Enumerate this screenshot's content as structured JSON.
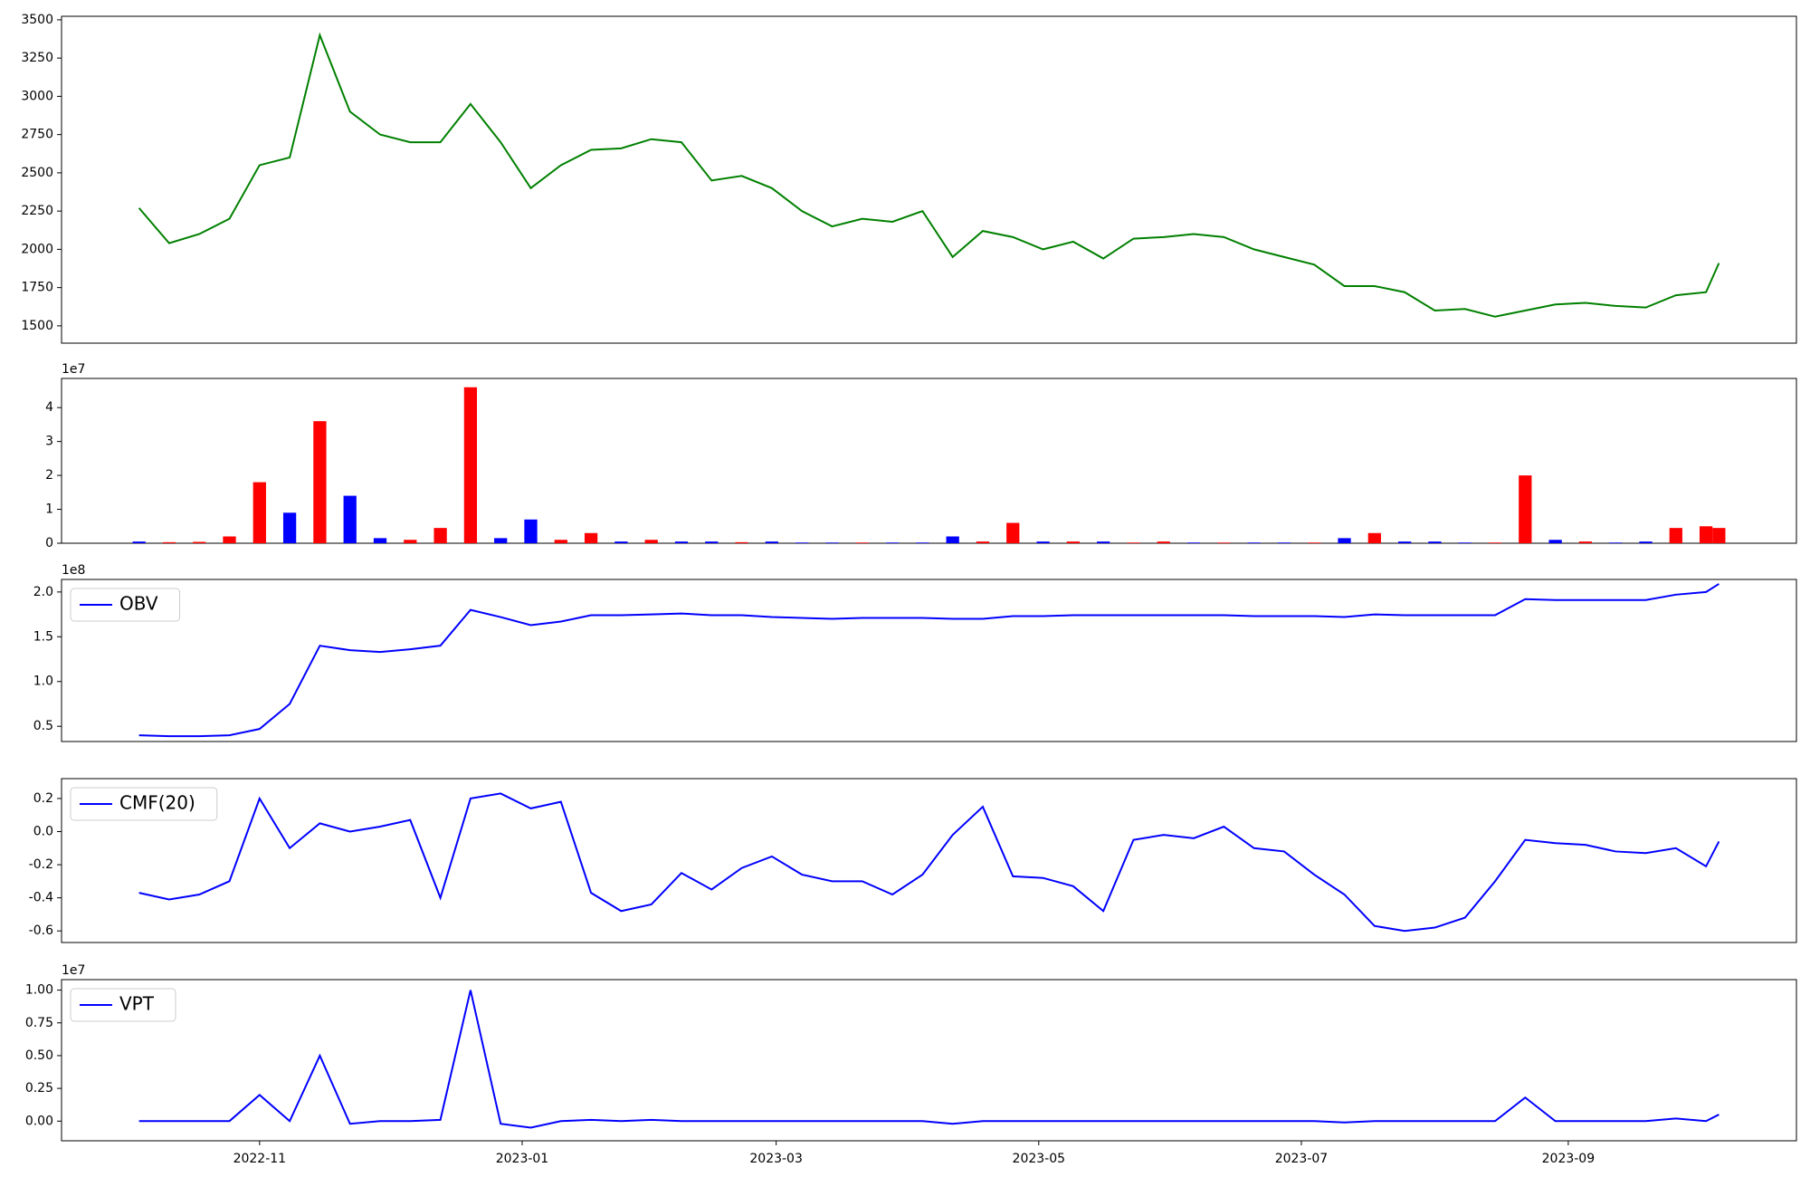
{
  "chart_data": [
    {
      "type": "line",
      "color": "green",
      "x": [
        19269,
        19276,
        19283,
        19290,
        19297,
        19304,
        19311,
        19318,
        19325,
        19332,
        19339,
        19346,
        19353,
        19360,
        19367,
        19374,
        19381,
        19388,
        19395,
        19402,
        19409,
        19416,
        19423,
        19430,
        19437,
        19444,
        19451,
        19458,
        19465,
        19472,
        19479,
        19486,
        19493,
        19500,
        19507,
        19514,
        19521,
        19528,
        19535,
        19542,
        19549,
        19556,
        19563,
        19570,
        19577,
        19584,
        19591,
        19598,
        19605,
        19612,
        19619,
        19626,
        19633,
        19636
      ],
      "values": [
        2270,
        2040,
        2100,
        2200,
        2550,
        2600,
        3400,
        2900,
        2750,
        2700,
        2700,
        2950,
        2700,
        2400,
        2550,
        2650,
        2660,
        2720,
        2700,
        2450,
        2480,
        2400,
        2250,
        2150,
        2200,
        2180,
        2250,
        1950,
        2120,
        2080,
        2000,
        2050,
        1940,
        2070,
        2080,
        2100,
        2080,
        2000,
        1950,
        1900,
        1760,
        1760,
        1720,
        1600,
        1610,
        1560,
        1600,
        1640,
        1650,
        1630,
        1620,
        1700,
        1720,
        1910
      ],
      "xlim": [
        19251,
        19654
      ],
      "ylim": [
        1387,
        3523
      ],
      "yticks": [
        1500,
        1750,
        2000,
        2250,
        2500,
        2750,
        3000,
        3250,
        3500
      ]
    },
    {
      "type": "bar",
      "offset_label": "1e7",
      "x": [
        19269,
        19276,
        19283,
        19290,
        19297,
        19304,
        19311,
        19318,
        19325,
        19332,
        19339,
        19346,
        19353,
        19360,
        19367,
        19374,
        19381,
        19388,
        19395,
        19402,
        19409,
        19416,
        19423,
        19430,
        19437,
        19444,
        19451,
        19458,
        19465,
        19472,
        19479,
        19486,
        19493,
        19500,
        19507,
        19514,
        19521,
        19528,
        19535,
        19542,
        19549,
        19556,
        19563,
        19570,
        19577,
        19584,
        19591,
        19598,
        19605,
        19612,
        19619,
        19626,
        19633,
        19636
      ],
      "values": [
        0.05,
        0.03,
        0.04,
        0.2,
        1.8,
        0.9,
        3.6,
        1.4,
        0.15,
        0.1,
        0.45,
        4.6,
        0.15,
        0.7,
        0.1,
        0.3,
        0.05,
        0.1,
        0.05,
        0.05,
        0.03,
        0.05,
        0.02,
        0.02,
        0.02,
        0.02,
        0.02,
        0.2,
        0.05,
        0.6,
        0.05,
        0.05,
        0.05,
        0.02,
        0.05,
        0.02,
        0.02,
        0.02,
        0.02,
        0.02,
        0.15,
        0.3,
        0.05,
        0.05,
        0.02,
        0.02,
        2.0,
        0.1,
        0.05,
        0.02,
        0.05,
        0.45,
        0.5,
        0.45
      ],
      "colors": [
        "blue",
        "red",
        "red",
        "red",
        "red",
        "blue",
        "red",
        "blue",
        "blue",
        "red",
        "red",
        "red",
        "blue",
        "blue",
        "red",
        "red",
        "blue",
        "red",
        "blue",
        "blue",
        "red",
        "blue",
        "blue",
        "blue",
        "red",
        "blue",
        "blue",
        "blue",
        "red",
        "red",
        "blue",
        "red",
        "blue",
        "red",
        "red",
        "blue",
        "red",
        "blue",
        "blue",
        "red",
        "blue",
        "red",
        "blue",
        "blue",
        "blue",
        "red",
        "red",
        "blue",
        "red",
        "blue",
        "blue",
        "red",
        "red",
        "red"
      ],
      "xlim": [
        19251,
        19654
      ],
      "ylim": [
        0,
        4.86
      ],
      "yticks": [
        0,
        1,
        2,
        3,
        4
      ]
    },
    {
      "type": "line",
      "offset_label": "1e8",
      "legend": "upper left",
      "x": [
        19269,
        19276,
        19283,
        19290,
        19297,
        19304,
        19311,
        19318,
        19325,
        19332,
        19339,
        19346,
        19353,
        19360,
        19367,
        19374,
        19381,
        19388,
        19395,
        19402,
        19409,
        19416,
        19423,
        19430,
        19437,
        19444,
        19451,
        19458,
        19465,
        19472,
        19479,
        19486,
        19493,
        19500,
        19507,
        19514,
        19521,
        19528,
        19535,
        19542,
        19549,
        19556,
        19563,
        19570,
        19577,
        19584,
        19591,
        19598,
        19605,
        19612,
        19619,
        19626,
        19633,
        19636
      ],
      "series": [
        {
          "name": "OBV",
          "color": "blue",
          "values": [
            0.4,
            0.39,
            0.39,
            0.4,
            0.47,
            0.75,
            1.4,
            1.35,
            1.33,
            1.36,
            1.4,
            1.8,
            1.72,
            1.63,
            1.67,
            1.74,
            1.74,
            1.75,
            1.76,
            1.74,
            1.74,
            1.72,
            1.71,
            1.7,
            1.71,
            1.71,
            1.71,
            1.7,
            1.7,
            1.73,
            1.73,
            1.74,
            1.74,
            1.74,
            1.74,
            1.74,
            1.74,
            1.73,
            1.73,
            1.73,
            1.72,
            1.75,
            1.74,
            1.74,
            1.74,
            1.74,
            1.92,
            1.91,
            1.91,
            1.91,
            1.91,
            1.97,
            2.0,
            2.09
          ]
        }
      ],
      "xlim": [
        19251,
        19654
      ],
      "ylim": [
        0.33,
        2.14
      ],
      "yticks": [
        0.5,
        {
          "value": 1,
          "label": "1.0"
        },
        1.5,
        {
          "value": 2,
          "label": "2.0"
        }
      ]
    },
    {
      "type": "line",
      "legend": "upper left",
      "x": [
        19269,
        19276,
        19283,
        19290,
        19297,
        19304,
        19311,
        19318,
        19325,
        19332,
        19339,
        19346,
        19353,
        19360,
        19367,
        19374,
        19381,
        19388,
        19395,
        19402,
        19409,
        19416,
        19423,
        19430,
        19437,
        19444,
        19451,
        19458,
        19465,
        19472,
        19479,
        19486,
        19493,
        19500,
        19507,
        19514,
        19521,
        19528,
        19535,
        19542,
        19549,
        19556,
        19563,
        19570,
        19577,
        19584,
        19591,
        19598,
        19605,
        19612,
        19619,
        19626,
        19633,
        19636
      ],
      "series": [
        {
          "name": "CMF(20)",
          "color": "blue",
          "values": [
            -0.37,
            -0.41,
            -0.38,
            -0.3,
            0.2,
            -0.1,
            0.05,
            0.0,
            0.03,
            0.07,
            -0.4,
            0.2,
            0.23,
            0.14,
            0.18,
            -0.37,
            -0.48,
            -0.44,
            -0.25,
            -0.35,
            -0.22,
            -0.15,
            -0.26,
            -0.3,
            -0.3,
            -0.38,
            -0.26,
            -0.02,
            0.15,
            -0.27,
            -0.28,
            -0.33,
            -0.48,
            -0.05,
            -0.02,
            -0.04,
            0.03,
            -0.1,
            -0.12,
            -0.26,
            -0.38,
            -0.57,
            -0.6,
            -0.58,
            -0.52,
            -0.3,
            -0.05,
            -0.07,
            -0.08,
            -0.12,
            -0.13,
            -0.1,
            -0.21,
            -0.06
          ]
        }
      ],
      "xlim": [
        19251,
        19654
      ],
      "ylim": [
        -0.67,
        0.32
      ],
      "yticks": [
        -0.6,
        -0.4,
        -0.2,
        {
          "value": 0,
          "label": "0.0"
        },
        0.2
      ]
    },
    {
      "type": "line",
      "offset_label": "1e7",
      "legend": "upper left",
      "x": [
        19269,
        19276,
        19283,
        19290,
        19297,
        19304,
        19311,
        19318,
        19325,
        19332,
        19339,
        19346,
        19353,
        19360,
        19367,
        19374,
        19381,
        19388,
        19395,
        19402,
        19409,
        19416,
        19423,
        19430,
        19437,
        19444,
        19451,
        19458,
        19465,
        19472,
        19479,
        19486,
        19493,
        19500,
        19507,
        19514,
        19521,
        19528,
        19535,
        19542,
        19549,
        19556,
        19563,
        19570,
        19577,
        19584,
        19591,
        19598,
        19605,
        19612,
        19619,
        19626,
        19633,
        19636
      ],
      "series": [
        {
          "name": "VPT",
          "color": "blue",
          "values": [
            0,
            0,
            0,
            0,
            0.2,
            0,
            0.5,
            -0.02,
            0,
            0,
            0.01,
            1.0,
            -0.02,
            -0.05,
            0,
            0.01,
            0,
            0.01,
            0,
            0,
            0,
            0,
            0,
            0,
            0,
            0,
            0,
            -0.02,
            0,
            0,
            0,
            0,
            0,
            0,
            0,
            0,
            0,
            0,
            0,
            0,
            -0.01,
            0,
            0,
            0,
            0,
            0,
            0.18,
            0,
            0,
            0,
            0,
            0.02,
            0,
            0.05
          ]
        }
      ],
      "xlim": [
        19251,
        19654
      ],
      "ylim": [
        -0.15,
        1.08
      ],
      "yticks": [
        {
          "value": 0,
          "label": "0.00"
        },
        0.25,
        {
          "value": 0.5,
          "label": "0.50"
        },
        0.75,
        {
          "value": 1,
          "label": "1.00"
        }
      ],
      "xticks": [
        {
          "value": 19297,
          "label": "2022-11"
        },
        {
          "value": 19358,
          "label": "2023-01"
        },
        {
          "value": 19417,
          "label": "2023-03"
        },
        {
          "value": 19478,
          "label": "2023-05"
        },
        {
          "value": 19539,
          "label": "2023-07"
        },
        {
          "value": 19601,
          "label": "2023-09"
        }
      ]
    }
  ]
}
